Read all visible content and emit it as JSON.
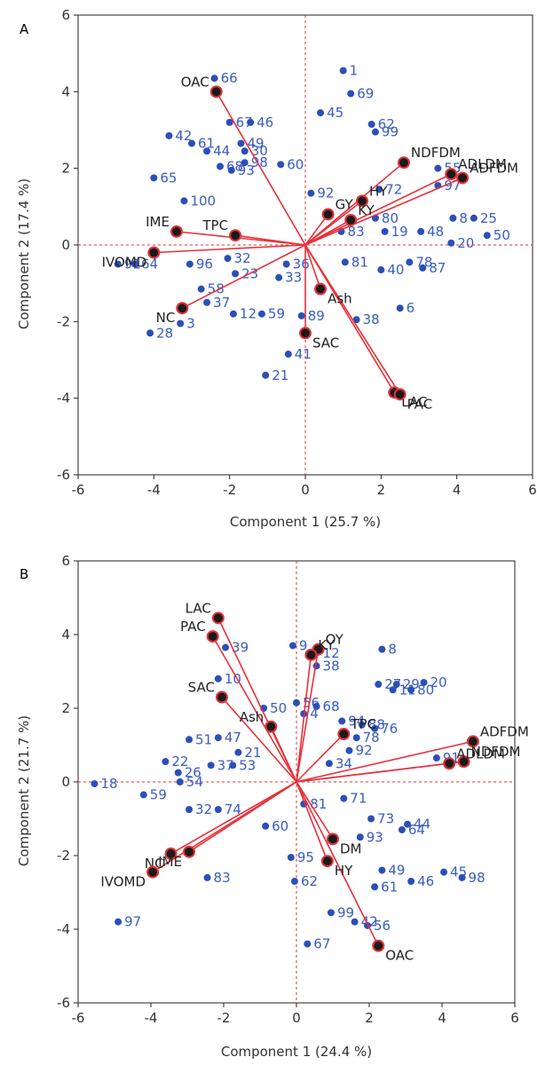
{
  "chart_data": [
    {
      "panel": "A",
      "type": "scatter",
      "subtype": "biplot",
      "xlabel": "Component 1  (25.7 %)",
      "ylabel": "Component 2  (17.4 %)",
      "xlim": [
        -6,
        6
      ],
      "ylim": [
        -6,
        6
      ],
      "xticks": [
        -6,
        -4,
        -2,
        0,
        2,
        4,
        6
      ],
      "yticks": [
        -6,
        -4,
        -2,
        0,
        2,
        4,
        6
      ],
      "grid": false,
      "reference_lines": "x=0 and y=0, dashed red",
      "colors": {
        "points": "#2b4fb8",
        "labels": "#3a5cc4",
        "loadings": "#e8303a",
        "loading_marker": "#1a1a1a"
      },
      "observations": [
        {
          "label": "1",
          "x": 1.0,
          "y": 4.55
        },
        {
          "label": "69",
          "x": 1.2,
          "y": 3.95
        },
        {
          "label": "45",
          "x": 0.4,
          "y": 3.45
        },
        {
          "label": "62",
          "x": 1.75,
          "y": 3.15
        },
        {
          "label": "99",
          "x": 1.85,
          "y": 2.95
        },
        {
          "label": "66",
          "x": -2.4,
          "y": 4.35
        },
        {
          "label": "67",
          "x": -2.0,
          "y": 3.2
        },
        {
          "label": "46",
          "x": -1.45,
          "y": 3.2
        },
        {
          "label": "42",
          "x": -3.6,
          "y": 2.85
        },
        {
          "label": "61",
          "x": -3.0,
          "y": 2.65
        },
        {
          "label": "44",
          "x": -2.6,
          "y": 2.45
        },
        {
          "label": "49",
          "x": -1.7,
          "y": 2.65
        },
        {
          "label": "30",
          "x": -1.6,
          "y": 2.45
        },
        {
          "label": "98",
          "x": -1.6,
          "y": 2.15
        },
        {
          "label": "68",
          "x": -2.25,
          "y": 2.05
        },
        {
          "label": "93",
          "x": -1.95,
          "y": 1.95
        },
        {
          "label": "60",
          "x": -0.65,
          "y": 2.1
        },
        {
          "label": "65",
          "x": -4.0,
          "y": 1.75
        },
        {
          "label": "100",
          "x": -3.2,
          "y": 1.15
        },
        {
          "label": "92",
          "x": 0.15,
          "y": 1.35
        },
        {
          "label": "72",
          "x": 1.95,
          "y": 1.45
        },
        {
          "label": "55",
          "x": 3.5,
          "y": 2.0
        },
        {
          "label": "97",
          "x": 3.5,
          "y": 1.55
        },
        {
          "label": "80",
          "x": 1.85,
          "y": 0.7
        },
        {
          "label": "48",
          "x": 3.05,
          "y": 0.35
        },
        {
          "label": "8",
          "x": 3.9,
          "y": 0.7
        },
        {
          "label": "25",
          "x": 4.45,
          "y": 0.7
        },
        {
          "label": "20",
          "x": 3.85,
          "y": 0.05
        },
        {
          "label": "50",
          "x": 4.8,
          "y": 0.25
        },
        {
          "label": "19",
          "x": 2.1,
          "y": 0.35
        },
        {
          "label": "83",
          "x": 0.95,
          "y": 0.35
        },
        {
          "label": "64",
          "x": -4.5,
          "y": -0.5
        },
        {
          "label": "91",
          "x": -4.95,
          "y": -0.5
        },
        {
          "label": "96",
          "x": -3.05,
          "y": -0.5
        },
        {
          "label": "32",
          "x": -2.05,
          "y": -0.35
        },
        {
          "label": "78",
          "x": 2.75,
          "y": -0.45
        },
        {
          "label": "87",
          "x": 3.1,
          "y": -0.6
        },
        {
          "label": "40",
          "x": 2.0,
          "y": -0.65
        },
        {
          "label": "36",
          "x": -0.5,
          "y": -0.5
        },
        {
          "label": "33",
          "x": -0.7,
          "y": -0.85
        },
        {
          "label": "58",
          "x": -2.75,
          "y": -1.15
        },
        {
          "label": "23",
          "x": -1.85,
          "y": -0.75
        },
        {
          "label": "28",
          "x": -4.1,
          "y": -2.3
        },
        {
          "label": "6",
          "x": 2.5,
          "y": -1.65
        },
        {
          "label": "38",
          "x": 1.35,
          "y": -1.95
        },
        {
          "label": "89",
          "x": -0.1,
          "y": -1.85
        },
        {
          "label": "59",
          "x": -1.15,
          "y": -1.8
        },
        {
          "label": "41",
          "x": -0.45,
          "y": -2.85
        },
        {
          "label": "21",
          "x": -1.05,
          "y": -3.4
        },
        {
          "label": "3",
          "x": -3.3,
          "y": -2.05
        },
        {
          "label": "37",
          "x": -2.6,
          "y": -1.5
        },
        {
          "label": "12",
          "x": -1.9,
          "y": -1.8
        },
        {
          "label": "81",
          "x": 1.05,
          "y": -0.45
        }
      ],
      "loadings": [
        {
          "label": "OAC",
          "x": -2.35,
          "y": 4.0
        },
        {
          "label": "NDFDM",
          "x": 2.6,
          "y": 2.15
        },
        {
          "label": "ADLDM",
          "x": 3.85,
          "y": 1.85
        },
        {
          "label": "ADFDM",
          "x": 4.15,
          "y": 1.75
        },
        {
          "label": "HY",
          "x": 1.5,
          "y": 1.15
        },
        {
          "label": "GY",
          "x": 0.6,
          "y": 0.8
        },
        {
          "label": "KY",
          "x": 1.2,
          "y": 0.65
        },
        {
          "label": "IME",
          "x": -3.4,
          "y": 0.35
        },
        {
          "label": "TPC",
          "x": -1.85,
          "y": 0.25
        },
        {
          "label": "IVOMD",
          "x": -4.0,
          "y": -0.2
        },
        {
          "label": "NC",
          "x": -3.25,
          "y": -1.65
        },
        {
          "label": "Ash",
          "x": 0.4,
          "y": -1.15
        },
        {
          "label": "SAC",
          "x": 0.0,
          "y": -2.3
        },
        {
          "label": "LAC",
          "x": 2.35,
          "y": -3.85
        },
        {
          "label": "PAC",
          "x": 2.5,
          "y": -3.9
        }
      ]
    },
    {
      "panel": "B",
      "type": "scatter",
      "subtype": "biplot",
      "xlabel": "Component 1  (24.4 %)",
      "ylabel": "Component 2  (21.7 %)",
      "xlim": [
        -6,
        6
      ],
      "ylim": [
        -6,
        6
      ],
      "xticks": [
        -6,
        -4,
        -2,
        0,
        2,
        4,
        6
      ],
      "yticks": [
        -6,
        -4,
        -2,
        0,
        2,
        4,
        6
      ],
      "grid": false,
      "reference_lines": "x=0 and y=0, dashed red",
      "colors": {
        "points": "#2b4fb8",
        "labels": "#3a5cc4",
        "loadings": "#e8303a",
        "loading_marker": "#1a1a1a"
      },
      "observations": [
        {
          "label": "9",
          "x": -0.1,
          "y": 3.7
        },
        {
          "label": "39",
          "x": -1.95,
          "y": 3.65
        },
        {
          "label": "12",
          "x": 0.55,
          "y": 3.5
        },
        {
          "label": "38",
          "x": 0.55,
          "y": 3.15
        },
        {
          "label": "8",
          "x": 2.35,
          "y": 3.6
        },
        {
          "label": "10",
          "x": -2.15,
          "y": 2.8
        },
        {
          "label": "27",
          "x": 2.25,
          "y": 2.65
        },
        {
          "label": "29",
          "x": 2.75,
          "y": 2.65
        },
        {
          "label": "20",
          "x": 3.5,
          "y": 2.7
        },
        {
          "label": "11",
          "x": 2.65,
          "y": 2.5
        },
        {
          "label": "80",
          "x": 3.15,
          "y": 2.5
        },
        {
          "label": "56",
          "x": 0.0,
          "y": 2.15
        },
        {
          "label": "50",
          "x": -0.9,
          "y": 2.0
        },
        {
          "label": "68",
          "x": 0.55,
          "y": 2.05
        },
        {
          "label": "4",
          "x": 0.2,
          "y": 1.85
        },
        {
          "label": "94",
          "x": 1.25,
          "y": 1.65
        },
        {
          "label": "88",
          "x": 1.8,
          "y": 1.55
        },
        {
          "label": "76",
          "x": 2.15,
          "y": 1.45
        },
        {
          "label": "78",
          "x": 1.65,
          "y": 1.2
        },
        {
          "label": "91",
          "x": 3.85,
          "y": 0.65
        },
        {
          "label": "92",
          "x": 1.45,
          "y": 0.85
        },
        {
          "label": "34",
          "x": 0.9,
          "y": 0.5
        },
        {
          "label": "71",
          "x": 1.3,
          "y": -0.45
        },
        {
          "label": "51",
          "x": -2.95,
          "y": 1.15
        },
        {
          "label": "47",
          "x": -2.15,
          "y": 1.2
        },
        {
          "label": "22",
          "x": -3.6,
          "y": 0.55
        },
        {
          "label": "18",
          "x": -5.55,
          "y": -0.05
        },
        {
          "label": "59",
          "x": -4.2,
          "y": -0.35
        },
        {
          "label": "26",
          "x": -3.25,
          "y": 0.25
        },
        {
          "label": "54",
          "x": -3.2,
          "y": 0.0
        },
        {
          "label": "37",
          "x": -2.35,
          "y": 0.45
        },
        {
          "label": "53",
          "x": -1.75,
          "y": 0.45
        },
        {
          "label": "21",
          "x": -1.6,
          "y": 0.8
        },
        {
          "label": "32",
          "x": -2.95,
          "y": -0.75
        },
        {
          "label": "74",
          "x": -2.15,
          "y": -0.75
        },
        {
          "label": "60",
          "x": -0.85,
          "y": -1.2
        },
        {
          "label": "81",
          "x": 0.2,
          "y": -0.6
        },
        {
          "label": "73",
          "x": 2.05,
          "y": -1.0
        },
        {
          "label": "44",
          "x": 3.05,
          "y": -1.15
        },
        {
          "label": "64",
          "x": 2.9,
          "y": -1.3
        },
        {
          "label": "93",
          "x": 1.75,
          "y": -1.5
        },
        {
          "label": "49",
          "x": 2.35,
          "y": -2.4
        },
        {
          "label": "45",
          "x": 4.05,
          "y": -2.45
        },
        {
          "label": "46",
          "x": 3.15,
          "y": -2.7
        },
        {
          "label": "98",
          "x": 4.55,
          "y": -2.6
        },
        {
          "label": "61",
          "x": 2.15,
          "y": -2.85
        },
        {
          "label": "83",
          "x": -2.45,
          "y": -2.6
        },
        {
          "label": "95",
          "x": -0.15,
          "y": -2.05
        },
        {
          "label": "62",
          "x": -0.05,
          "y": -2.7
        },
        {
          "label": "99",
          "x": 0.95,
          "y": -3.55
        },
        {
          "label": "42",
          "x": 1.6,
          "y": -3.8
        },
        {
          "label": "56",
          "x": 1.95,
          "y": -3.9
        },
        {
          "label": "67",
          "x": 0.3,
          "y": -4.4
        },
        {
          "label": "97",
          "x": -4.9,
          "y": -3.8
        }
      ],
      "loadings": [
        {
          "label": "LAC",
          "x": -2.15,
          "y": 4.45
        },
        {
          "label": "PAC",
          "x": -2.3,
          "y": 3.95
        },
        {
          "label": "OY",
          "x": 0.6,
          "y": 3.6
        },
        {
          "label": "KY",
          "x": 0.4,
          "y": 3.45
        },
        {
          "label": "SAC",
          "x": -2.05,
          "y": 2.3
        },
        {
          "label": "Ash",
          "x": -0.7,
          "y": 1.5
        },
        {
          "label": "TPC",
          "x": 1.3,
          "y": 1.3
        },
        {
          "label": "ADFDM",
          "x": 4.85,
          "y": 1.1
        },
        {
          "label": "NDFDM",
          "x": 4.6,
          "y": 0.55
        },
        {
          "label": "ADLDM",
          "x": 4.2,
          "y": 0.5
        },
        {
          "label": "DM",
          "x": 1.0,
          "y": -1.55
        },
        {
          "label": "HY",
          "x": 0.85,
          "y": -2.15
        },
        {
          "label": "NC",
          "x": -3.45,
          "y": -1.95
        },
        {
          "label": "IME",
          "x": -2.95,
          "y": -1.9
        },
        {
          "label": "IVOMD",
          "x": -3.95,
          "y": -2.45
        },
        {
          "label": "OAC",
          "x": 2.25,
          "y": -4.45
        }
      ]
    }
  ]
}
